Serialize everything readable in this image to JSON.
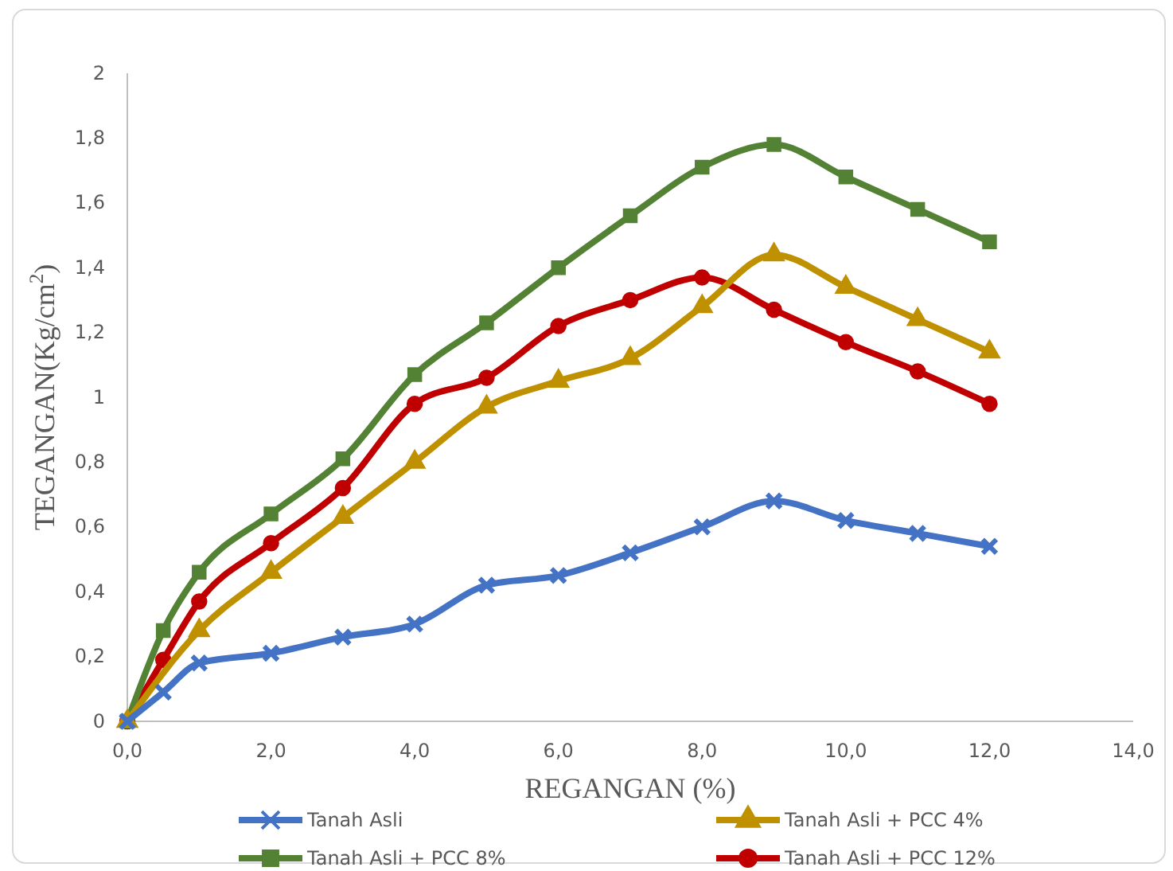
{
  "chart_data": {
    "type": "line",
    "xlabel": "REGANGAN (%)",
    "ylabel": "TEGANGAN(Kg/cm$^{2}$)",
    "x": [
      0,
      0.5,
      1,
      2,
      3,
      4,
      5,
      6,
      7,
      8,
      9,
      10,
      11,
      12
    ],
    "series": [
      {
        "name": "Tanah Asli",
        "color": "#4472c4",
        "marker": "cross",
        "values": [
          0,
          0.09,
          0.18,
          0.21,
          0.26,
          0.3,
          0.42,
          0.45,
          0.52,
          0.6,
          0.68,
          0.62,
          0.58,
          0.54
        ]
      },
      {
        "name": "Tanah Asli + PCC 4%",
        "color": "#bf9000",
        "marker": "triangle",
        "values": [
          0,
          null,
          0.28,
          0.46,
          0.63,
          0.8,
          0.97,
          1.05,
          1.12,
          1.28,
          1.44,
          1.34,
          1.24,
          1.14
        ]
      },
      {
        "name": "Tanah Asli + PCC 8%",
        "color": "#548235",
        "marker": "square",
        "values": [
          0,
          0.28,
          0.46,
          0.64,
          0.81,
          1.07,
          1.23,
          1.4,
          1.56,
          1.71,
          1.78,
          1.68,
          1.58,
          1.48
        ]
      },
      {
        "name": "Tanah Asli + PCC 12%",
        "color": "#c00000",
        "marker": "circle",
        "values": [
          0,
          0.19,
          0.37,
          0.55,
          0.72,
          0.98,
          1.06,
          1.22,
          1.3,
          1.37,
          1.27,
          1.17,
          1.08,
          0.98
        ]
      }
    ],
    "xlim": [
      0,
      14
    ],
    "xticks": [
      {
        "value": 0,
        "label": "0,0"
      },
      {
        "value": 2,
        "label": "2,0"
      },
      {
        "value": 4,
        "label": "4,0"
      },
      {
        "value": 6,
        "label": "6,0"
      },
      {
        "value": 8,
        "label": "8,0"
      },
      {
        "value": 10,
        "label": "10,0"
      },
      {
        "value": 12,
        "label": "12,0"
      },
      {
        "value": 14,
        "label": "14,0"
      }
    ],
    "ylim": [
      0,
      2
    ],
    "yticks": [
      0,
      {
        "value": 0.2,
        "label": "0,2"
      },
      {
        "value": 0.4,
        "label": "0,4"
      },
      {
        "value": 0.6,
        "label": "0,6"
      },
      {
        "value": 0.8,
        "label": "0,8"
      },
      1,
      {
        "value": 1.2,
        "label": "1,2"
      },
      {
        "value": 1.4,
        "label": "1,4"
      },
      {
        "value": 1.6,
        "label": "1,6"
      },
      {
        "value": 1.8,
        "label": "1,8"
      },
      2
    ],
    "grid": false,
    "legend": "bottom",
    "line_style": "solid"
  }
}
